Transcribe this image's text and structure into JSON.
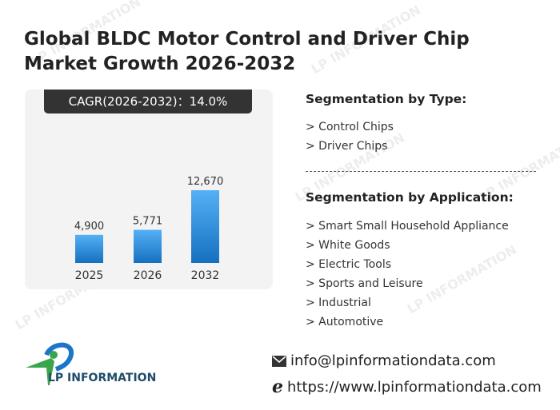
{
  "title": "Global BLDC Motor Control and Driver Chip Market Growth 2026-2032",
  "cagr_label": "CAGR(2026-2032)：14.0%",
  "chart_data": {
    "type": "bar",
    "categories": [
      "2025",
      "2026",
      "2032"
    ],
    "values": [
      4900,
      5771,
      12670
    ],
    "value_labels": [
      "4,900",
      "5,771",
      "12,670"
    ],
    "colors": {
      "bar_top": "#56b0f5",
      "bar_bottom": "#1570c0"
    }
  },
  "segmentation_type": {
    "heading": "Segmentation by Type:",
    "items": [
      "> Control Chips",
      "> Driver Chips"
    ]
  },
  "segmentation_application": {
    "heading": "Segmentation by Application:",
    "items": [
      "> Smart Small Household Appliance",
      "> White Goods",
      "> Electric Tools",
      "> Sports and Leisure",
      "> Industrial",
      "> Automotive"
    ]
  },
  "logo": {
    "text": "LP INFORMATION"
  },
  "contact": {
    "email": "info@lpinformationdata.com",
    "website": "https://www.lpinformationdata.com"
  },
  "watermark": "LP INFORMATION"
}
